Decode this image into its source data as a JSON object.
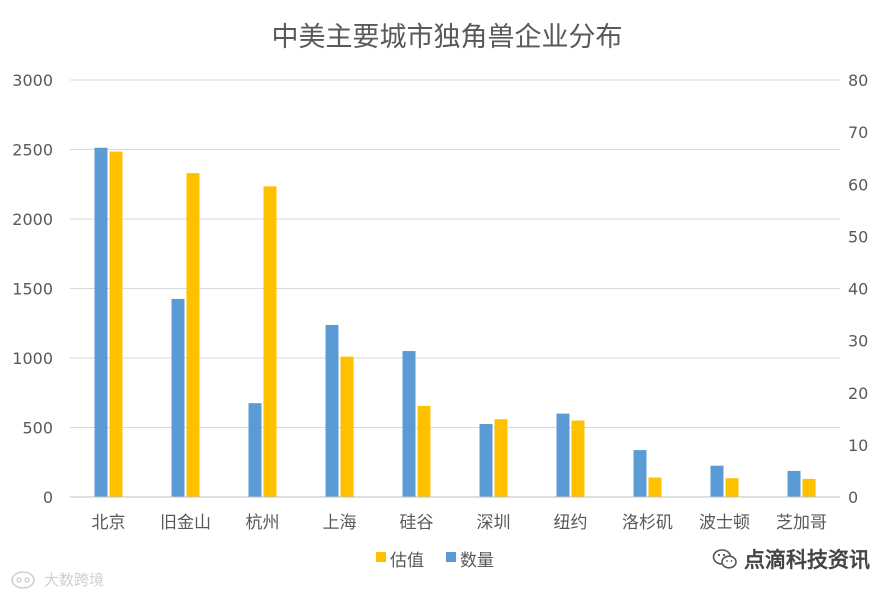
{
  "chart_data": {
    "type": "bar",
    "title": "中美主要城市独角兽企业分布",
    "categories": [
      "北京",
      "旧金山",
      "杭州",
      "上海",
      "硅谷",
      "深圳",
      "纽约",
      "洛杉矶",
      "波士顿",
      "芝加哥"
    ],
    "series": [
      {
        "name": "数量",
        "axis": "right",
        "color": "#5B9BD5",
        "values": [
          67,
          38,
          18,
          33,
          28,
          14,
          16,
          9,
          6,
          5
        ]
      },
      {
        "name": "估值",
        "axis": "left",
        "color": "#FFC000",
        "values": [
          2485,
          2330,
          2235,
          1010,
          655,
          560,
          550,
          140,
          135,
          130
        ]
      }
    ],
    "y_left": {
      "min": 0,
      "max": 3000,
      "ticks": [
        0,
        500,
        1000,
        1500,
        2000,
        2500,
        3000
      ]
    },
    "y_right": {
      "min": 0,
      "max": 80,
      "ticks": [
        0,
        10,
        20,
        30,
        40,
        50,
        60,
        70,
        80
      ]
    },
    "legend_order": [
      "估值",
      "数量"
    ],
    "legend_position": "bottom",
    "grid": true
  },
  "watermarks": {
    "brand": "点滴科技资讯",
    "corner": "大数跨境"
  }
}
